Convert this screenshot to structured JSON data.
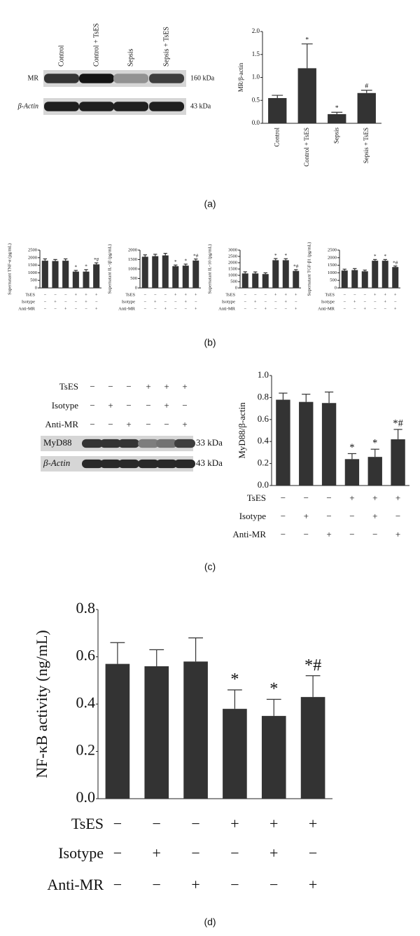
{
  "panel_labels": [
    "(a)",
    "(b)",
    "(c)",
    "(d)"
  ],
  "blots": [
    {
      "lanes": [
        "Control",
        "Control + TsES",
        "Sepsis",
        "Sepsis + TsES"
      ],
      "rows": [
        {
          "label": "MR",
          "size": "160 kDa"
        },
        {
          "label": "β-Actin",
          "size": "43 kDa"
        }
      ]
    },
    {
      "conditions": [
        {
          "name": "TsES",
          "marks": [
            "−",
            "−",
            "−",
            "+",
            "+",
            "+"
          ]
        },
        {
          "name": "Isotype",
          "marks": [
            "−",
            "+",
            "−",
            "−",
            "+",
            "−"
          ]
        },
        {
          "name": "Anti-MR",
          "marks": [
            "−",
            "−",
            "+",
            "−",
            "−",
            "+"
          ]
        }
      ],
      "rows": [
        {
          "label": "MyD88",
          "size": "33 kDa"
        },
        {
          "label": "β-Actin",
          "size": "43 kDa"
        }
      ]
    }
  ],
  "chart_data": [
    {
      "type": "bar",
      "ylabel": "MR/β-actin",
      "categories": [
        "Control",
        "Control + TsES",
        "Sepsis",
        "Sepsis + TsES"
      ],
      "values": [
        0.55,
        1.2,
        0.2,
        0.66
      ],
      "errors": [
        0.06,
        0.53,
        0.04,
        0.06
      ],
      "annotations": [
        null,
        "*",
        "*",
        "#"
      ],
      "color": "#333333",
      "ylim": [
        0,
        2
      ],
      "yticks": [
        {
          "value": 0,
          "label": "0.0"
        },
        {
          "value": 0.5,
          "label": "0.5"
        },
        {
          "value": 1,
          "label": "1.0"
        },
        {
          "value": 1.5,
          "label": "1.5"
        },
        {
          "value": 2,
          "label": "2.0"
        }
      ]
    },
    {
      "type": "bar",
      "ylabel": "Supernatant TNF-α (pg/mL)",
      "values": [
        1800,
        1780,
        1800,
        1080,
        1080,
        1560
      ],
      "errors": [
        120,
        100,
        120,
        80,
        130,
        100
      ],
      "annotations": [
        null,
        null,
        null,
        "*",
        "*",
        "*#"
      ],
      "color": "#333333",
      "ylim": [
        0,
        2500
      ],
      "yticks": [
        0,
        500,
        1000,
        1500,
        2000,
        2500
      ],
      "conditions": [
        {
          "name": "TsES",
          "marks": [
            "−",
            "−",
            "−",
            "+",
            "+",
            "+"
          ]
        },
        {
          "name": "Isotype",
          "marks": [
            "−",
            "+",
            "−",
            "−",
            "+",
            "−"
          ]
        },
        {
          "name": "Anti-MR",
          "marks": [
            "−",
            "−",
            "+",
            "−",
            "−",
            "+"
          ]
        }
      ]
    },
    {
      "type": "bar",
      "ylabel": "Supernatant IL-1β (pg/mL)",
      "values": [
        1650,
        1680,
        1720,
        1150,
        1180,
        1450
      ],
      "errors": [
        100,
        100,
        110,
        60,
        80,
        80
      ],
      "annotations": [
        null,
        null,
        null,
        "*",
        "*",
        "*#"
      ],
      "color": "#333333",
      "ylim": [
        0,
        2000
      ],
      "yticks": [
        0,
        500,
        1000,
        1500,
        2000
      ],
      "conditions": [
        {
          "name": "TsES",
          "marks": [
            "−",
            "−",
            "−",
            "+",
            "+",
            "+"
          ]
        },
        {
          "name": "Isotype",
          "marks": [
            "−",
            "+",
            "−",
            "−",
            "+",
            "−"
          ]
        },
        {
          "name": "Anti-MR",
          "marks": [
            "−",
            "−",
            "+",
            "−",
            "−",
            "+"
          ]
        }
      ]
    },
    {
      "type": "bar",
      "ylabel": "Supernatant IL-10 (pg/mL)",
      "values": [
        1150,
        1150,
        1100,
        2200,
        2200,
        1350
      ],
      "errors": [
        130,
        120,
        100,
        130,
        120,
        100
      ],
      "annotations": [
        null,
        null,
        null,
        "*",
        "*",
        "*#"
      ],
      "color": "#333333",
      "ylim": [
        0,
        3000
      ],
      "yticks": [
        0,
        500,
        1000,
        1500,
        2000,
        2500,
        3000
      ],
      "conditions": [
        {
          "name": "TsES",
          "marks": [
            "−",
            "−",
            "−",
            "+",
            "+",
            "+"
          ]
        },
        {
          "name": "Isotype",
          "marks": [
            "−",
            "+",
            "−",
            "−",
            "+",
            "−"
          ]
        },
        {
          "name": "Anti-MR",
          "marks": [
            "−",
            "−",
            "+",
            "−",
            "−",
            "+"
          ]
        }
      ]
    },
    {
      "type": "bar",
      "ylabel": "Supernatant TGF-β1 (pg/mL)",
      "values": [
        1150,
        1180,
        1100,
        1800,
        1800,
        1380
      ],
      "errors": [
        90,
        100,
        80,
        80,
        80,
        70
      ],
      "annotations": [
        null,
        null,
        null,
        "*",
        "*",
        "*#"
      ],
      "color": "#333333",
      "ylim": [
        0,
        2500
      ],
      "yticks": [
        0,
        500,
        1000,
        1500,
        2000,
        2500
      ],
      "conditions": [
        {
          "name": "TsES",
          "marks": [
            "−",
            "−",
            "−",
            "+",
            "+",
            "+"
          ]
        },
        {
          "name": "Isotype",
          "marks": [
            "−",
            "+",
            "−",
            "−",
            "+",
            "−"
          ]
        },
        {
          "name": "Anti-MR",
          "marks": [
            "−",
            "−",
            "+",
            "−",
            "−",
            "+"
          ]
        }
      ]
    },
    {
      "type": "bar",
      "ylabel": "MyD88/β-actin",
      "values": [
        0.78,
        0.76,
        0.75,
        0.24,
        0.26,
        0.42
      ],
      "errors": [
        0.06,
        0.07,
        0.1,
        0.05,
        0.07,
        0.09
      ],
      "annotations": [
        null,
        null,
        null,
        "*",
        "*",
        "*#"
      ],
      "color": "#333333",
      "ylim": [
        0,
        1
      ],
      "yticks": [
        {
          "value": 0,
          "label": "0.0"
        },
        {
          "value": 0.2,
          "label": "0.2"
        },
        {
          "value": 0.4,
          "label": "0.4"
        },
        {
          "value": 0.6,
          "label": "0.6"
        },
        {
          "value": 0.8,
          "label": "0.8"
        },
        {
          "value": 1,
          "label": "1.0"
        }
      ],
      "conditions": [
        {
          "name": "TsES",
          "marks": [
            "−",
            "−",
            "−",
            "+",
            "+",
            "+"
          ]
        },
        {
          "name": "Isotype",
          "marks": [
            "−",
            "+",
            "−",
            "−",
            "+",
            "−"
          ]
        },
        {
          "name": "Anti-MR",
          "marks": [
            "−",
            "−",
            "+",
            "−",
            "−",
            "+"
          ]
        }
      ]
    },
    {
      "type": "bar",
      "ylabel": "NF-κB activity (ng/mL)",
      "values": [
        0.57,
        0.56,
        0.58,
        0.38,
        0.35,
        0.43
      ],
      "errors": [
        0.09,
        0.07,
        0.1,
        0.08,
        0.07,
        0.09
      ],
      "annotations": [
        null,
        null,
        null,
        "*",
        "*",
        "*#"
      ],
      "color": "#333333",
      "ylim": [
        0,
        0.8
      ],
      "yticks": [
        {
          "value": 0,
          "label": "0.0"
        },
        {
          "value": 0.2,
          "label": "0.2"
        },
        {
          "value": 0.4,
          "label": "0.4"
        },
        {
          "value": 0.6,
          "label": "0.6"
        },
        {
          "value": 0.8,
          "label": "0.8"
        }
      ],
      "conditions": [
        {
          "name": "TsES",
          "marks": [
            "−",
            "−",
            "−",
            "+",
            "+",
            "+"
          ]
        },
        {
          "name": "Isotype",
          "marks": [
            "−",
            "+",
            "−",
            "−",
            "+",
            "−"
          ]
        },
        {
          "name": "Anti-MR",
          "marks": [
            "−",
            "−",
            "+",
            "−",
            "−",
            "+"
          ]
        }
      ]
    }
  ]
}
